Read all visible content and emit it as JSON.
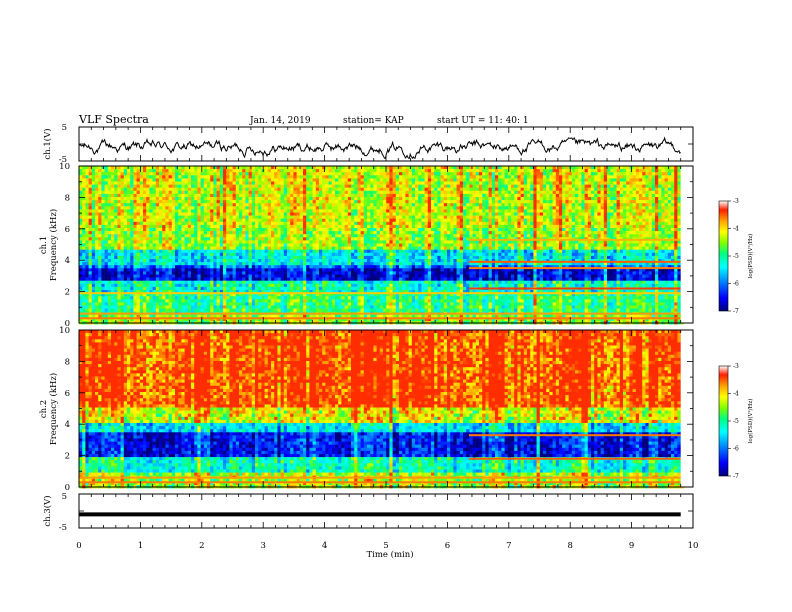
{
  "header": {
    "title": "VLF Spectra",
    "date": "Jan. 14, 2019",
    "station": "station= KAP",
    "start_ut": "start  UT =   11: 40: 1"
  },
  "colorbar_colors": [
    "#00007a",
    "#0000ff",
    "#0090ff",
    "#00ffff",
    "#00ff80",
    "#80ff00",
    "#ffff00",
    "#ffa000",
    "#ff2000",
    "#ffffff"
  ],
  "chart_data": [
    {
      "type": "line",
      "name": "ch1-waveform",
      "ylabel": "ch.1(V)",
      "yticks": [
        "5",
        "-5"
      ],
      "ylim": [
        -5,
        5
      ],
      "xlim": [
        0,
        10
      ],
      "trace_end_min": 9.8,
      "note_values": "noisy trace oscillating about -1 V, roughly between -4 and 1 V"
    },
    {
      "type": "heatmap",
      "name": "ch1-spectrogram",
      "ylabel_line1": "ch.1",
      "ylabel_line2": "Frequency (kHz)",
      "yticks": [
        "0",
        "2",
        "4",
        "6",
        "8",
        "10"
      ],
      "ylim": [
        0,
        10
      ],
      "xlim": [
        0,
        10
      ],
      "data_end_min": 9.8,
      "colorbar": {
        "label": "log(PSD)(V²/Hz)",
        "ticks": [
          "-3",
          "-4",
          "-5",
          "-6",
          "-7"
        ],
        "range": [
          -7,
          -3
        ]
      },
      "frequency_profile": [
        {
          "from_khz": 0.0,
          "to_khz": 0.6,
          "level": -4.6
        },
        {
          "from_khz": 0.6,
          "to_khz": 1.9,
          "level": -4.9
        },
        {
          "from_khz": 1.9,
          "to_khz": 2.7,
          "level": -5.2
        },
        {
          "from_khz": 2.7,
          "to_khz": 3.4,
          "level": -6.6
        },
        {
          "from_khz": 3.4,
          "to_khz": 3.7,
          "level": -6.0
        },
        {
          "from_khz": 3.7,
          "to_khz": 4.7,
          "level": -5.4
        },
        {
          "from_khz": 4.7,
          "to_khz": 6.0,
          "level": -4.6
        },
        {
          "from_khz": 6.0,
          "to_khz": 10.0,
          "level": -4.4
        }
      ],
      "lines": [
        {
          "khz": 2.2,
          "start_min": 6.35,
          "level": -3.4
        },
        {
          "khz": 3.5,
          "start_min": 6.35,
          "level": -3.6
        },
        {
          "khz": 3.9,
          "start_min": 6.35,
          "level": -3.5
        },
        {
          "khz": 5.3,
          "start_min": 6.35,
          "level": -3.8
        },
        {
          "khz": 0.3,
          "start_min": 0,
          "level": -3.6
        },
        {
          "khz": 0.6,
          "start_min": 0,
          "level": -3.7
        },
        {
          "khz": 1.9,
          "start_min": 0,
          "level": -3.9
        }
      ]
    },
    {
      "type": "heatmap",
      "name": "ch2-spectrogram",
      "ylabel_line1": "ch.2",
      "ylabel_line2": "Frequency (kHz)",
      "yticks": [
        "0",
        "2",
        "4",
        "6",
        "8",
        "10"
      ],
      "ylim": [
        0,
        10
      ],
      "xlim": [
        0,
        10
      ],
      "data_end_min": 9.8,
      "colorbar": {
        "label": "log(PSD)(V²/Hz)",
        "ticks": [
          "-3",
          "-4",
          "-5",
          "-6",
          "-7"
        ],
        "range": [
          -7,
          -3
        ]
      },
      "frequency_profile": [
        {
          "from_khz": 0.0,
          "to_khz": 1.0,
          "level": -4.7
        },
        {
          "from_khz": 1.0,
          "to_khz": 2.0,
          "level": -5.2
        },
        {
          "from_khz": 2.0,
          "to_khz": 3.4,
          "level": -6.5
        },
        {
          "from_khz": 3.4,
          "to_khz": 4.0,
          "level": -5.5
        },
        {
          "from_khz": 4.0,
          "to_khz": 5.0,
          "level": -4.5
        },
        {
          "from_khz": 5.0,
          "to_khz": 10.0,
          "level": -3.7
        }
      ],
      "lines": [
        {
          "khz": 1.8,
          "start_min": 6.35,
          "level": -3.5
        },
        {
          "khz": 3.3,
          "start_min": 6.35,
          "level": -3.6
        },
        {
          "khz": 0.3,
          "start_min": 0,
          "level": -3.6
        },
        {
          "khz": 0.6,
          "start_min": 0,
          "level": -3.7
        }
      ]
    },
    {
      "type": "line",
      "name": "ch3-waveform",
      "ylabel": "ch.3(V)",
      "yticks": [
        "5",
        "-5"
      ],
      "ylim": [
        -5,
        5
      ],
      "xlim": [
        0,
        10
      ],
      "trace_end_min": 9.8,
      "constant_value": -1
    }
  ],
  "x_axis": {
    "label": "Time (min)",
    "ticks": [
      "0",
      "1",
      "2",
      "3",
      "4",
      "5",
      "6",
      "7",
      "8",
      "9",
      "10"
    ]
  }
}
